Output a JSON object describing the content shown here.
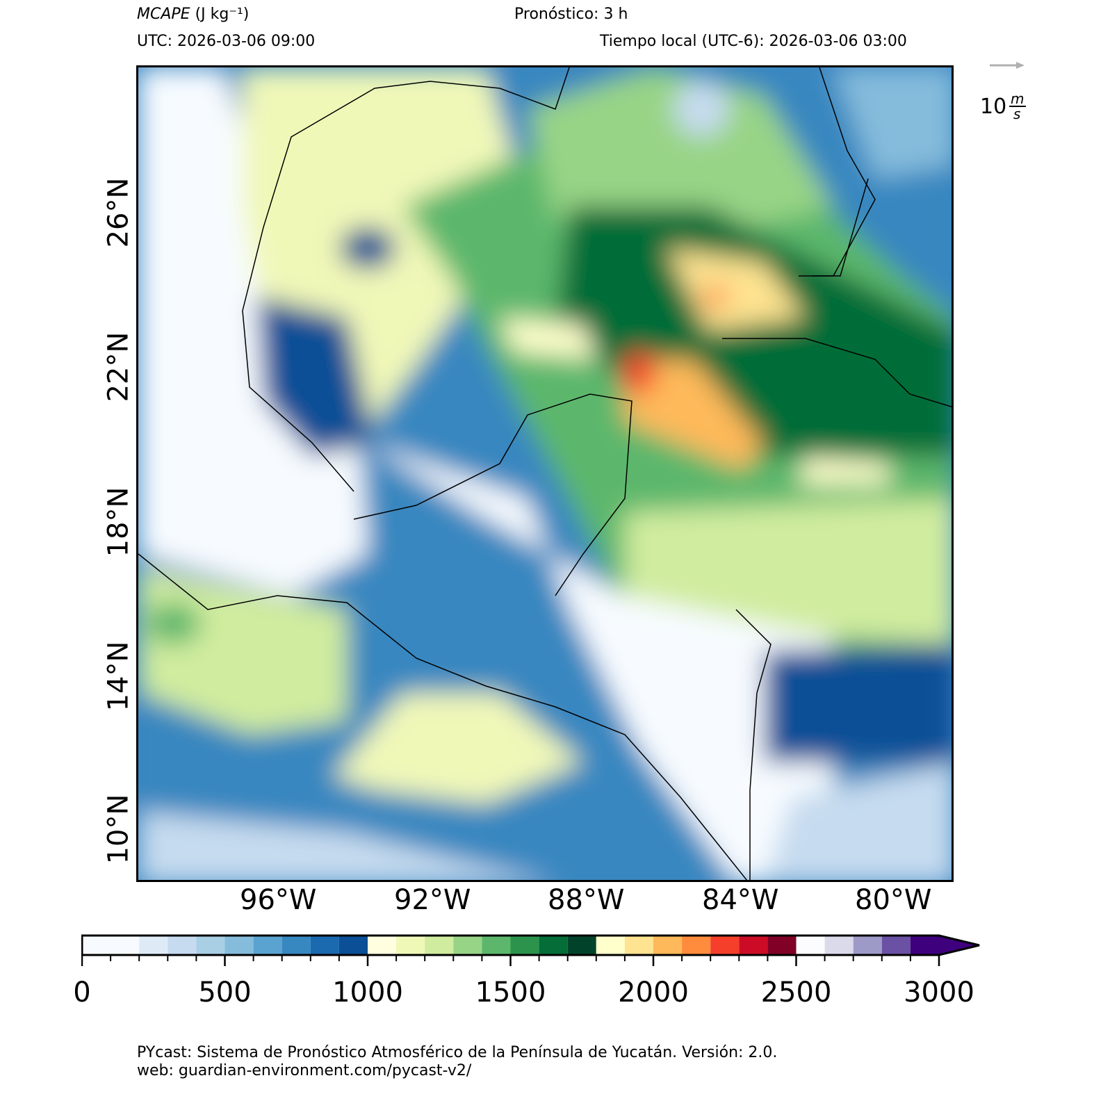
{
  "header": {
    "variable": "MCAPE",
    "units": "(J kg⁻¹)",
    "forecast": "Pronóstico: 3 h",
    "utc": "UTC:  2026-03-06 09:00",
    "local": "Tiempo local (UTC-6): 2026-03-06 03:00"
  },
  "wind_key": {
    "label": "10",
    "unit_num": "m",
    "unit_den": "s",
    "color": "#b0b0b0"
  },
  "map": {
    "lat_labels": [
      "26°N",
      "22°N",
      "18°N",
      "14°N",
      "10°N"
    ],
    "lon_labels": [
      "96°W",
      "92°W",
      "88°W",
      "84°W",
      "80°W"
    ]
  },
  "colorbar": {
    "min": 0,
    "max": 3000,
    "extend": "max",
    "tick_labels": [
      "0",
      "500",
      "1000",
      "1500",
      "2000",
      "2500",
      "3000"
    ],
    "bounds": [
      0,
      200,
      300,
      400,
      500,
      600,
      700,
      800,
      900,
      1000,
      1100,
      1200,
      1300,
      1400,
      1500,
      1600,
      1700,
      1800,
      1900,
      2000,
      2100,
      2200,
      2300,
      2400,
      2500,
      2600,
      2700,
      2800,
      2900,
      3000
    ],
    "colors": [
      "#f7fbff",
      "#deebf7",
      "#c6dbef",
      "#a9cfe5",
      "#85bcdc",
      "#5aa2d0",
      "#3787c0",
      "#1b69af",
      "#0b4f96",
      "#ffffe0",
      "#f0f8b8",
      "#d0ec9f",
      "#98d486",
      "#5cb76c",
      "#2c934d",
      "#046d38",
      "#00432a",
      "#ffffcc",
      "#fee391",
      "#feb95a",
      "#fe8c3c",
      "#f53f2a",
      "#cc0c26",
      "#800026",
      "#fcfbfd",
      "#dadaeb",
      "#9e9ac8",
      "#6a51a3",
      "#3f007d"
    ],
    "extend_color": "#3f007d"
  },
  "footer": {
    "line1": "PYcast: Sistema de Pronóstico Atmosférico de la Península de Yucatán. Versión: 2.0.",
    "line2": "web: guardian-environment.com/pycast-v2/"
  }
}
